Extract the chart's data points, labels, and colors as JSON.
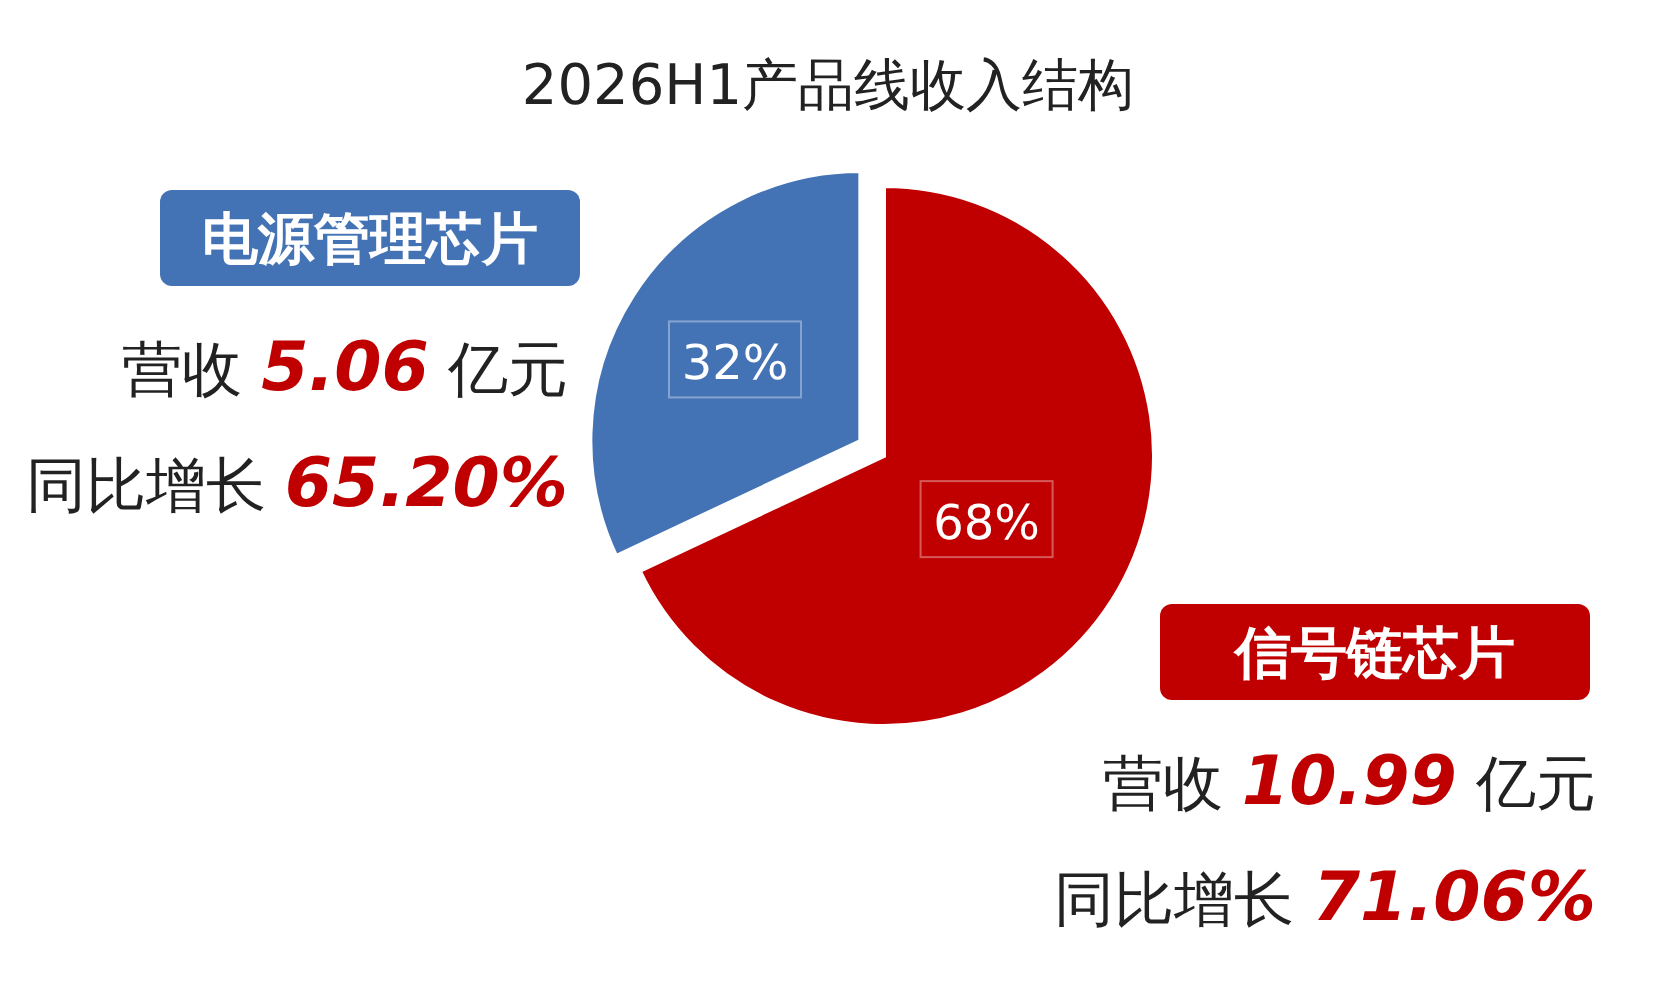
{
  "chart_data": {
    "type": "pie",
    "title": "2026H1产品线收入结构",
    "categories": [
      "电源管理芯片",
      "信号链芯片"
    ],
    "values": [
      32,
      68
    ],
    "colors": [
      "#4473b5",
      "#c00000"
    ],
    "value_labels": [
      "32%",
      "68%"
    ],
    "legend": false,
    "annotations": [
      "营收 **5.06** 亿元",
      "同比增长 **65.20%**",
      "营收 **10.99** 亿元",
      "同比增长 **71.06%**"
    ]
  }
}
